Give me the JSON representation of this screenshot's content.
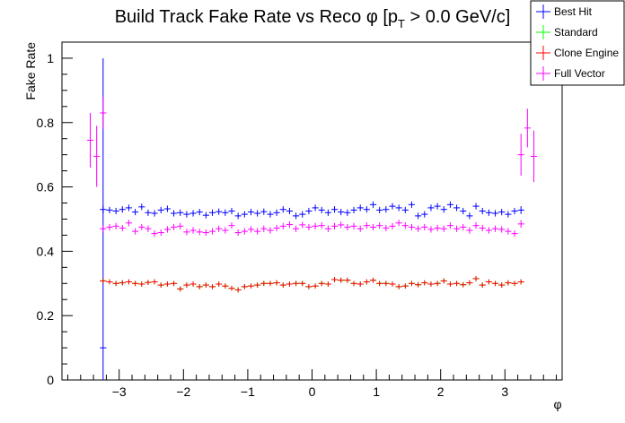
{
  "chart_data": {
    "type": "scatter",
    "title_main": "Build Track Fake Rate vs Reco ",
    "title_phi": "φ",
    "title_bracket": " [p",
    "title_sub": "T",
    "title_rest": " > 0.0 GeV/c]",
    "xlabel": "φ",
    "ylabel": "Fake Rate",
    "xlim": [
      -3.89,
      3.89
    ],
    "ylim": [
      0,
      1.05
    ],
    "x_ticks": [
      -3,
      -2,
      -1,
      0,
      1,
      2,
      3
    ],
    "x_tick_labels": [
      "−3",
      "−2",
      "−1",
      "0",
      "1",
      "2",
      "3"
    ],
    "y_ticks": [
      0,
      0.2,
      0.4,
      0.6,
      0.8,
      1
    ],
    "y_tick_labels": [
      "0",
      "0.2",
      "0.4",
      "0.6",
      "0.8",
      "1"
    ],
    "grid": false,
    "legend_position": "top-right",
    "bin_width": 0.1,
    "series": [
      {
        "name": "Best Hit",
        "color": "#0000ff",
        "x_start": -3.25,
        "values": [
          0.53,
          0.528,
          0.525,
          0.53,
          0.535,
          0.522,
          0.538,
          0.52,
          0.518,
          0.528,
          0.532,
          0.518,
          0.52,
          0.515,
          0.518,
          0.522,
          0.512,
          0.52,
          0.523,
          0.52,
          0.525,
          0.51,
          0.515,
          0.522,
          0.518,
          0.523,
          0.515,
          0.52,
          0.53,
          0.525,
          0.51,
          0.515,
          0.525,
          0.535,
          0.528,
          0.52,
          0.53,
          0.522,
          0.52,
          0.528,
          0.535,
          0.53,
          0.545,
          0.528,
          0.53,
          0.54,
          0.535,
          0.528,
          0.545,
          0.51,
          0.515,
          0.535,
          0.54,
          0.53,
          0.545,
          0.535,
          0.525,
          0.51,
          0.54,
          0.525,
          0.52,
          0.518,
          0.522,
          0.515,
          0.525,
          0.528
        ],
        "errors": [
          0.012,
          0.01,
          0.01,
          0.01,
          0.01,
          0.01,
          0.01,
          0.01,
          0.01,
          0.01,
          0.01,
          0.01,
          0.01,
          0.01,
          0.01,
          0.01,
          0.01,
          0.01,
          0.01,
          0.01,
          0.01,
          0.01,
          0.01,
          0.01,
          0.01,
          0.01,
          0.01,
          0.01,
          0.01,
          0.01,
          0.01,
          0.01,
          0.01,
          0.01,
          0.01,
          0.01,
          0.01,
          0.01,
          0.01,
          0.01,
          0.01,
          0.01,
          0.01,
          0.01,
          0.01,
          0.01,
          0.01,
          0.01,
          0.01,
          0.01,
          0.01,
          0.01,
          0.01,
          0.01,
          0.01,
          0.01,
          0.01,
          0.01,
          0.01,
          0.01,
          0.01,
          0.01,
          0.01,
          0.01,
          0.01,
          0.012
        ],
        "extra_points": [
          {
            "x": -3.25,
            "y": 0.1,
            "err_low": 0.1,
            "err_high": 0.9
          }
        ]
      },
      {
        "name": "Standard",
        "color": "#00ff00",
        "x_start": -3.25,
        "values": [
          0.308,
          0.305,
          0.3,
          0.302,
          0.305,
          0.3,
          0.298,
          0.303,
          0.305,
          0.295,
          0.298,
          0.3,
          0.283,
          0.295,
          0.298,
          0.29,
          0.295,
          0.29,
          0.298,
          0.292,
          0.285,
          0.28,
          0.29,
          0.292,
          0.295,
          0.3,
          0.3,
          0.302,
          0.295,
          0.298,
          0.3,
          0.3,
          0.29,
          0.292,
          0.3,
          0.298,
          0.312,
          0.31,
          0.31,
          0.3,
          0.298,
          0.305,
          0.31,
          0.3,
          0.3,
          0.298,
          0.29,
          0.292,
          0.3,
          0.296,
          0.302,
          0.298,
          0.3,
          0.308,
          0.298,
          0.3,
          0.296,
          0.302,
          0.315,
          0.295,
          0.305,
          0.3,
          0.295,
          0.302,
          0.3,
          0.305
        ],
        "errors": [
          0.008,
          0.008,
          0.008,
          0.008,
          0.008,
          0.008,
          0.008,
          0.008,
          0.008,
          0.008,
          0.008,
          0.008,
          0.008,
          0.008,
          0.008,
          0.008,
          0.008,
          0.008,
          0.008,
          0.008,
          0.008,
          0.008,
          0.008,
          0.008,
          0.008,
          0.008,
          0.008,
          0.008,
          0.008,
          0.008,
          0.008,
          0.008,
          0.008,
          0.008,
          0.008,
          0.008,
          0.008,
          0.008,
          0.008,
          0.008,
          0.008,
          0.008,
          0.008,
          0.008,
          0.008,
          0.008,
          0.008,
          0.008,
          0.008,
          0.008,
          0.008,
          0.008,
          0.008,
          0.008,
          0.008,
          0.008,
          0.008,
          0.008,
          0.008,
          0.008,
          0.008,
          0.008,
          0.008,
          0.008,
          0.008,
          0.008
        ]
      },
      {
        "name": "Clone Engine",
        "color": "#ff0000",
        "x_start": -3.25,
        "values": [
          0.308,
          0.305,
          0.3,
          0.302,
          0.305,
          0.3,
          0.298,
          0.303,
          0.305,
          0.295,
          0.298,
          0.3,
          0.283,
          0.295,
          0.298,
          0.29,
          0.295,
          0.29,
          0.298,
          0.292,
          0.285,
          0.28,
          0.29,
          0.292,
          0.295,
          0.3,
          0.3,
          0.302,
          0.295,
          0.298,
          0.3,
          0.3,
          0.29,
          0.292,
          0.3,
          0.298,
          0.312,
          0.31,
          0.31,
          0.3,
          0.298,
          0.305,
          0.31,
          0.3,
          0.3,
          0.298,
          0.29,
          0.292,
          0.3,
          0.296,
          0.302,
          0.298,
          0.3,
          0.308,
          0.298,
          0.3,
          0.296,
          0.302,
          0.315,
          0.295,
          0.305,
          0.3,
          0.295,
          0.302,
          0.3,
          0.305
        ],
        "errors": [
          0.008,
          0.008,
          0.008,
          0.008,
          0.008,
          0.008,
          0.008,
          0.008,
          0.008,
          0.008,
          0.008,
          0.008,
          0.008,
          0.008,
          0.008,
          0.008,
          0.008,
          0.008,
          0.008,
          0.008,
          0.008,
          0.008,
          0.008,
          0.008,
          0.008,
          0.008,
          0.008,
          0.008,
          0.008,
          0.008,
          0.008,
          0.008,
          0.008,
          0.008,
          0.008,
          0.008,
          0.008,
          0.008,
          0.008,
          0.008,
          0.008,
          0.008,
          0.008,
          0.008,
          0.008,
          0.008,
          0.008,
          0.008,
          0.008,
          0.008,
          0.008,
          0.008,
          0.008,
          0.008,
          0.008,
          0.008,
          0.008,
          0.008,
          0.008,
          0.008,
          0.008,
          0.008,
          0.008,
          0.008,
          0.008,
          0.008
        ]
      },
      {
        "name": "Full Vector",
        "color": "#ff00ff",
        "x_start": -3.25,
        "values": [
          0.47,
          0.475,
          0.478,
          0.472,
          0.488,
          0.462,
          0.475,
          0.47,
          0.455,
          0.458,
          0.468,
          0.475,
          0.478,
          0.46,
          0.465,
          0.46,
          0.458,
          0.462,
          0.47,
          0.465,
          0.48,
          0.458,
          0.462,
          0.468,
          0.462,
          0.47,
          0.465,
          0.472,
          0.478,
          0.483,
          0.47,
          0.482,
          0.475,
          0.478,
          0.48,
          0.47,
          0.478,
          0.482,
          0.475,
          0.478,
          0.47,
          0.48,
          0.475,
          0.48,
          0.472,
          0.478,
          0.488,
          0.48,
          0.475,
          0.47,
          0.475,
          0.468,
          0.472,
          0.47,
          0.48,
          0.47,
          0.475,
          0.465,
          0.48,
          0.472,
          0.465,
          0.47,
          0.468,
          0.462,
          0.455,
          0.485
        ],
        "errors": [
          0.012,
          0.01,
          0.01,
          0.01,
          0.01,
          0.01,
          0.01,
          0.01,
          0.01,
          0.01,
          0.01,
          0.01,
          0.01,
          0.01,
          0.01,
          0.01,
          0.01,
          0.01,
          0.01,
          0.01,
          0.01,
          0.01,
          0.01,
          0.01,
          0.01,
          0.01,
          0.01,
          0.01,
          0.01,
          0.01,
          0.01,
          0.01,
          0.01,
          0.01,
          0.01,
          0.01,
          0.01,
          0.01,
          0.01,
          0.01,
          0.01,
          0.01,
          0.01,
          0.01,
          0.01,
          0.01,
          0.01,
          0.01,
          0.01,
          0.01,
          0.01,
          0.01,
          0.01,
          0.01,
          0.01,
          0.01,
          0.01,
          0.01,
          0.01,
          0.01,
          0.01,
          0.01,
          0.01,
          0.01,
          0.01,
          0.012
        ],
        "extra_points": [
          {
            "x": -3.45,
            "y": 0.745,
            "err_low": 0.085,
            "err_high": 0.085
          },
          {
            "x": -3.35,
            "y": 0.695,
            "err_low": 0.095,
            "err_high": 0.095
          },
          {
            "x": -3.25,
            "y": 0.83,
            "err_low": 0.05,
            "err_high": 0.05
          },
          {
            "x": 3.25,
            "y": 0.7,
            "err_low": 0.065,
            "err_high": 0.065
          },
          {
            "x": 3.35,
            "y": 0.783,
            "err_low": 0.06,
            "err_high": 0.06
          },
          {
            "x": 3.45,
            "y": 0.695,
            "err_low": 0.08,
            "err_high": 0.08
          }
        ]
      }
    ]
  }
}
